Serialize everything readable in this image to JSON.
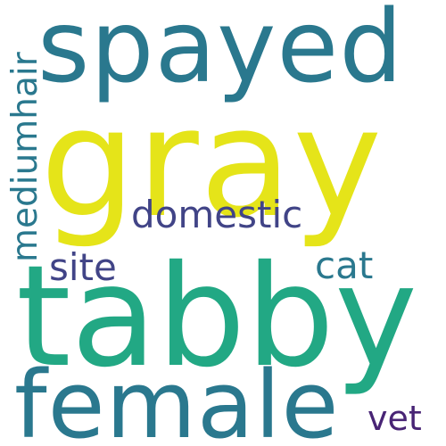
{
  "words": {
    "gray": {
      "text": "gray",
      "color": "#e5e419"
    },
    "tabby": {
      "text": "tabby",
      "color": "#22a884"
    },
    "spayed": {
      "text": "spayed",
      "color": "#2a788e"
    },
    "female": {
      "text": "female",
      "color": "#2a788e"
    },
    "domestic": {
      "text": "domestic",
      "color": "#414487"
    },
    "site": {
      "text": "site",
      "color": "#414487"
    },
    "cat": {
      "text": "cat",
      "color": "#2a788e"
    },
    "vet": {
      "text": "vet",
      "color": "#482475"
    },
    "mediumhair": {
      "text": "mediumhair",
      "color": "#2a788e"
    }
  }
}
